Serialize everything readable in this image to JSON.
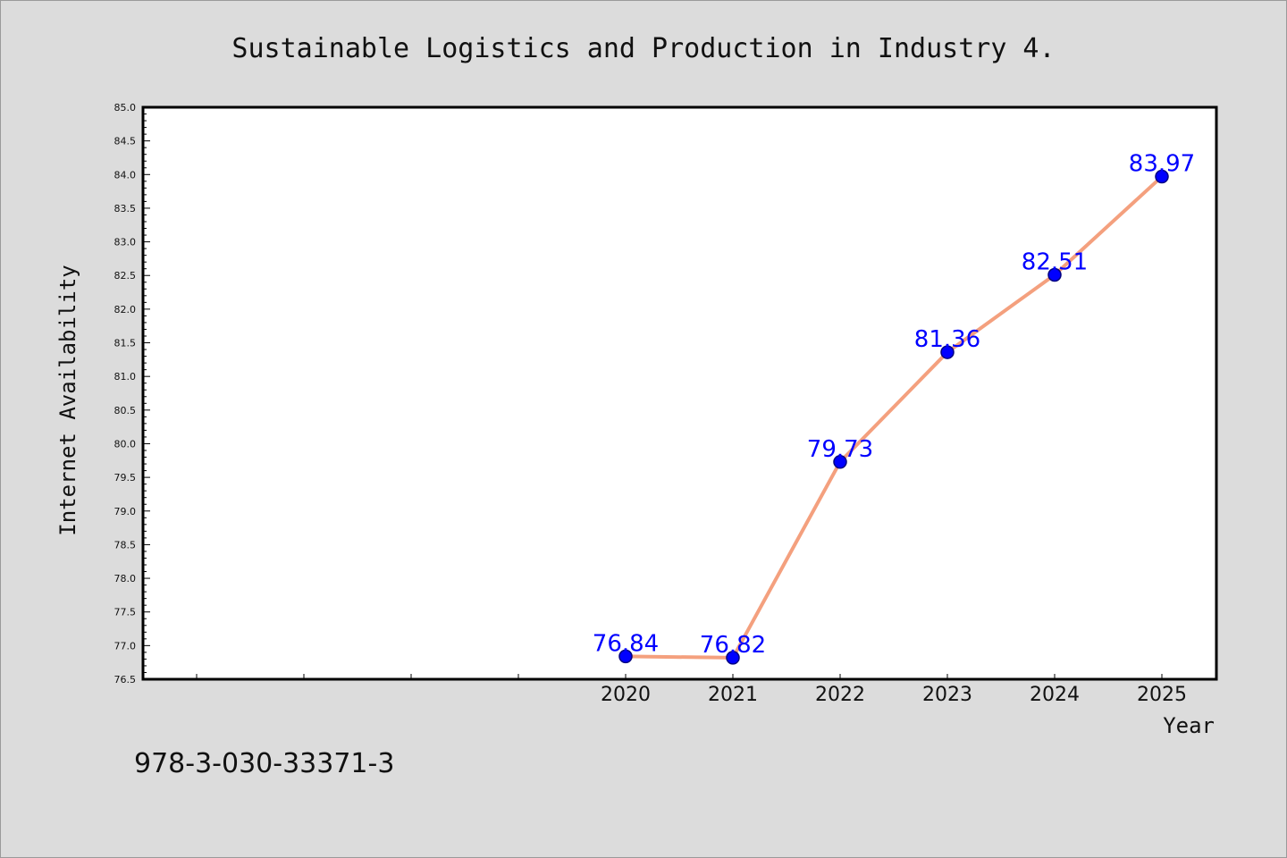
{
  "chart_data": {
    "type": "line",
    "title": "Sustainable Logistics and Production in Industry 4.",
    "xlabel": "Year",
    "ylabel": "Internet Availability",
    "categories": [
      "2020",
      "2021",
      "2022",
      "2023",
      "2024",
      "2025"
    ],
    "series": [
      {
        "values": [
          76.84,
          76.82,
          79.73,
          81.36,
          82.51,
          83.97
        ],
        "labels": [
          "76.84",
          "76.82",
          "79.73",
          "81.36",
          "82.51",
          "83.97"
        ]
      }
    ],
    "ylim": [
      76.5,
      85.0
    ],
    "yticks": [
      "76.5",
      "77.0",
      "77.5",
      "78.0",
      "78.5",
      "79.0",
      "79.5",
      "80.0",
      "80.5",
      "81.0",
      "81.5",
      "82.0",
      "82.5",
      "83.0",
      "83.5",
      "84.0",
      "84.5",
      "85.0"
    ],
    "grid": false,
    "colors": {
      "line": "#f4a07e",
      "marker_fill": "#0000ff",
      "marker_edge": "#000080",
      "data_label": "#0000ff",
      "plot_background": "#ffffff",
      "page_background": "#dcdcdc"
    }
  },
  "footer": {
    "isbn": "978-3-030-33371-3"
  }
}
